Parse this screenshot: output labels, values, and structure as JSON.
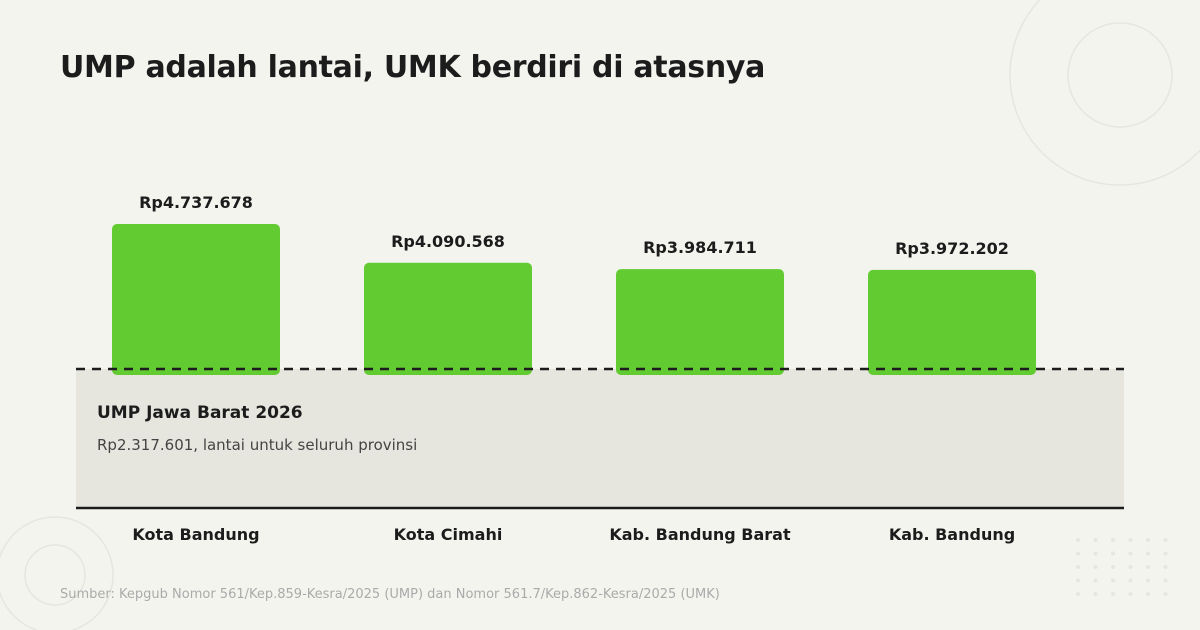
{
  "title": "UMP adalah lantai, UMK berdiri di atasnya",
  "floor": {
    "title": "UMP Jawa Barat 2026",
    "subtitle": "Rp2.317.601, lantai untuk seluruh provinsi"
  },
  "source": "Sumber: Kepgub Nomor 561/Kep.859-Kesra/2025 (UMP) dan Nomor 561.7/Kep.862-Kesra/2025 (UMK)",
  "colors": {
    "bar": "#62cb31",
    "floor_fill": "#e6e6df",
    "background": "#f4f4ef",
    "text": "#1c1c1c",
    "decoration": "#e6e6e0"
  },
  "chart_data": {
    "type": "bar",
    "categories": [
      "Kota Bandung",
      "Kota Cimahi",
      "Kab. Bandung Barat",
      "Kab. Bandung"
    ],
    "values": [
      4737678,
      4090568,
      3984711,
      3972202
    ],
    "data_labels": [
      "Rp4.737.678",
      "Rp4.090.568",
      "Rp3.984.711",
      "Rp3.972.202"
    ],
    "baseline_value": 2317601,
    "baseline_label": "UMP Jawa Barat 2026",
    "grid": false,
    "legend": "none"
  }
}
